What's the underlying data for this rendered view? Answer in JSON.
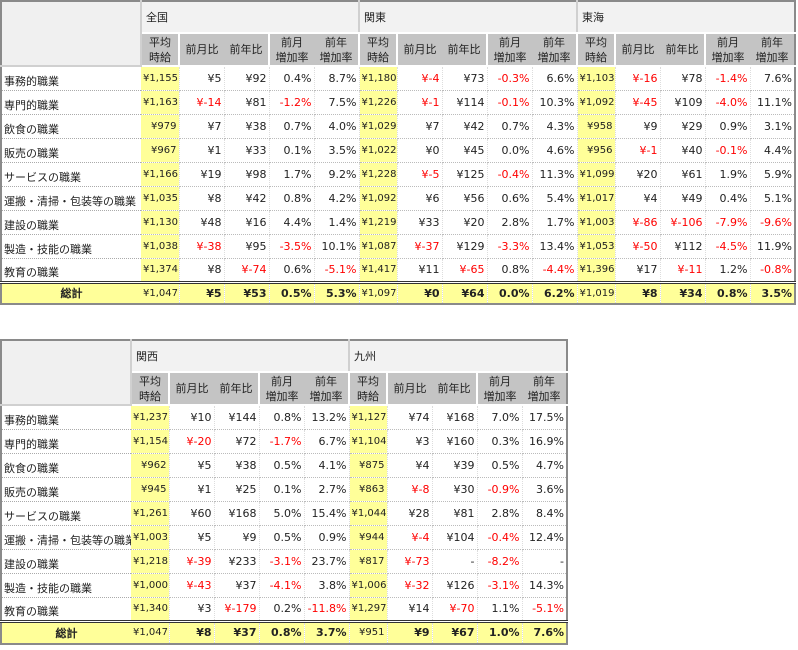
{
  "headers": {
    "avg": "平均\n時給",
    "mom": "前月比",
    "yoy": "前年比",
    "mom_rate": "前月\n増加率",
    "yoy_rate": "前年\n増加率",
    "total": "総計"
  },
  "colors": {
    "highlight": "#ffff99",
    "negative": "#ff0000",
    "header": "#c4c4c4"
  },
  "tables": [
    {
      "regions": [
        "全国",
        "関東",
        "東海"
      ],
      "rows": [
        {
          "label": "事務的職業",
          "cells": [
            [
              "¥1,155",
              "¥5",
              "¥92",
              "0.4%",
              "8.7%"
            ],
            [
              "¥1,180",
              "¥-4",
              "¥73",
              "-0.3%",
              "6.6%"
            ],
            [
              "¥1,103",
              "¥-16",
              "¥78",
              "-1.4%",
              "7.6%"
            ]
          ]
        },
        {
          "label": "専門的職業",
          "cells": [
            [
              "¥1,163",
              "¥-14",
              "¥81",
              "-1.2%",
              "7.5%"
            ],
            [
              "¥1,226",
              "¥-1",
              "¥114",
              "-0.1%",
              "10.3%"
            ],
            [
              "¥1,092",
              "¥-45",
              "¥109",
              "-4.0%",
              "11.1%"
            ]
          ]
        },
        {
          "label": "飲食の職業",
          "cells": [
            [
              "¥979",
              "¥7",
              "¥38",
              "0.7%",
              "4.0%"
            ],
            [
              "¥1,029",
              "¥7",
              "¥42",
              "0.7%",
              "4.3%"
            ],
            [
              "¥958",
              "¥9",
              "¥29",
              "0.9%",
              "3.1%"
            ]
          ]
        },
        {
          "label": "販売の職業",
          "cells": [
            [
              "¥967",
              "¥1",
              "¥33",
              "0.1%",
              "3.5%"
            ],
            [
              "¥1,022",
              "¥0",
              "¥45",
              "0.0%",
              "4.6%"
            ],
            [
              "¥956",
              "¥-1",
              "¥40",
              "-0.1%",
              "4.4%"
            ]
          ]
        },
        {
          "label": "サービスの職業",
          "cells": [
            [
              "¥1,166",
              "¥19",
              "¥98",
              "1.7%",
              "9.2%"
            ],
            [
              "¥1,228",
              "¥-5",
              "¥125",
              "-0.4%",
              "11.3%"
            ],
            [
              "¥1,099",
              "¥20",
              "¥61",
              "1.9%",
              "5.9%"
            ]
          ]
        },
        {
          "label": "運搬・清掃・包装等の職業",
          "cells": [
            [
              "¥1,035",
              "¥8",
              "¥42",
              "0.8%",
              "4.2%"
            ],
            [
              "¥1,092",
              "¥6",
              "¥56",
              "0.6%",
              "5.4%"
            ],
            [
              "¥1,017",
              "¥4",
              "¥49",
              "0.4%",
              "5.1%"
            ]
          ]
        },
        {
          "label": "建設の職業",
          "cells": [
            [
              "¥1,130",
              "¥48",
              "¥16",
              "4.4%",
              "1.4%"
            ],
            [
              "¥1,219",
              "¥33",
              "¥20",
              "2.8%",
              "1.7%"
            ],
            [
              "¥1,003",
              "¥-86",
              "¥-106",
              "-7.9%",
              "-9.6%"
            ]
          ]
        },
        {
          "label": "製造・技能の職業",
          "cells": [
            [
              "¥1,038",
              "¥-38",
              "¥95",
              "-3.5%",
              "10.1%"
            ],
            [
              "¥1,087",
              "¥-37",
              "¥129",
              "-3.3%",
              "13.4%"
            ],
            [
              "¥1,053",
              "¥-50",
              "¥112",
              "-4.5%",
              "11.9%"
            ]
          ]
        },
        {
          "label": "教育の職業",
          "cells": [
            [
              "¥1,374",
              "¥8",
              "¥-74",
              "0.6%",
              "-5.1%"
            ],
            [
              "¥1,417",
              "¥11",
              "¥-65",
              "0.8%",
              "-4.4%"
            ],
            [
              "¥1,396",
              "¥17",
              "¥-11",
              "1.2%",
              "-0.8%"
            ]
          ]
        }
      ],
      "total": [
        [
          "¥1,047",
          "¥5",
          "¥53",
          "0.5%",
          "5.3%"
        ],
        [
          "¥1,097",
          "¥0",
          "¥64",
          "0.0%",
          "6.2%"
        ],
        [
          "¥1,019",
          "¥8",
          "¥34",
          "0.8%",
          "3.5%"
        ]
      ]
    },
    {
      "regions": [
        "関西",
        "九州"
      ],
      "rows": [
        {
          "label": "事務的職業",
          "cells": [
            [
              "¥1,237",
              "¥10",
              "¥144",
              "0.8%",
              "13.2%"
            ],
            [
              "¥1,127",
              "¥74",
              "¥168",
              "7.0%",
              "17.5%"
            ]
          ]
        },
        {
          "label": "専門的職業",
          "cells": [
            [
              "¥1,154",
              "¥-20",
              "¥72",
              "-1.7%",
              "6.7%"
            ],
            [
              "¥1,104",
              "¥3",
              "¥160",
              "0.3%",
              "16.9%"
            ]
          ]
        },
        {
          "label": "飲食の職業",
          "cells": [
            [
              "¥962",
              "¥5",
              "¥38",
              "0.5%",
              "4.1%"
            ],
            [
              "¥875",
              "¥4",
              "¥39",
              "0.5%",
              "4.7%"
            ]
          ]
        },
        {
          "label": "販売の職業",
          "cells": [
            [
              "¥945",
              "¥1",
              "¥25",
              "0.1%",
              "2.7%"
            ],
            [
              "¥863",
              "¥-8",
              "¥30",
              "-0.9%",
              "3.6%"
            ]
          ]
        },
        {
          "label": "サービスの職業",
          "cells": [
            [
              "¥1,261",
              "¥60",
              "¥168",
              "5.0%",
              "15.4%"
            ],
            [
              "¥1,044",
              "¥28",
              "¥81",
              "2.8%",
              "8.4%"
            ]
          ]
        },
        {
          "label": "運搬・清掃・包装等の職業",
          "cells": [
            [
              "¥1,003",
              "¥5",
              "¥9",
              "0.5%",
              "0.9%"
            ],
            [
              "¥944",
              "¥-4",
              "¥104",
              "-0.4%",
              "12.4%"
            ]
          ]
        },
        {
          "label": "建設の職業",
          "cells": [
            [
              "¥1,218",
              "¥-39",
              "¥233",
              "-3.1%",
              "23.7%"
            ],
            [
              "¥817",
              "¥-73",
              "-",
              "-8.2%",
              "-"
            ]
          ]
        },
        {
          "label": "製造・技能の職業",
          "cells": [
            [
              "¥1,000",
              "¥-43",
              "¥37",
              "-4.1%",
              "3.8%"
            ],
            [
              "¥1,006",
              "¥-32",
              "¥126",
              "-3.1%",
              "14.3%"
            ]
          ]
        },
        {
          "label": "教育の職業",
          "cells": [
            [
              "¥1,340",
              "¥3",
              "¥-179",
              "0.2%",
              "-11.8%"
            ],
            [
              "¥1,297",
              "¥14",
              "¥-70",
              "1.1%",
              "-5.1%"
            ]
          ]
        }
      ],
      "total": [
        [
          "¥1,047",
          "¥8",
          "¥37",
          "0.8%",
          "3.7%"
        ],
        [
          "¥951",
          "¥9",
          "¥67",
          "1.0%",
          "7.6%"
        ]
      ]
    }
  ]
}
